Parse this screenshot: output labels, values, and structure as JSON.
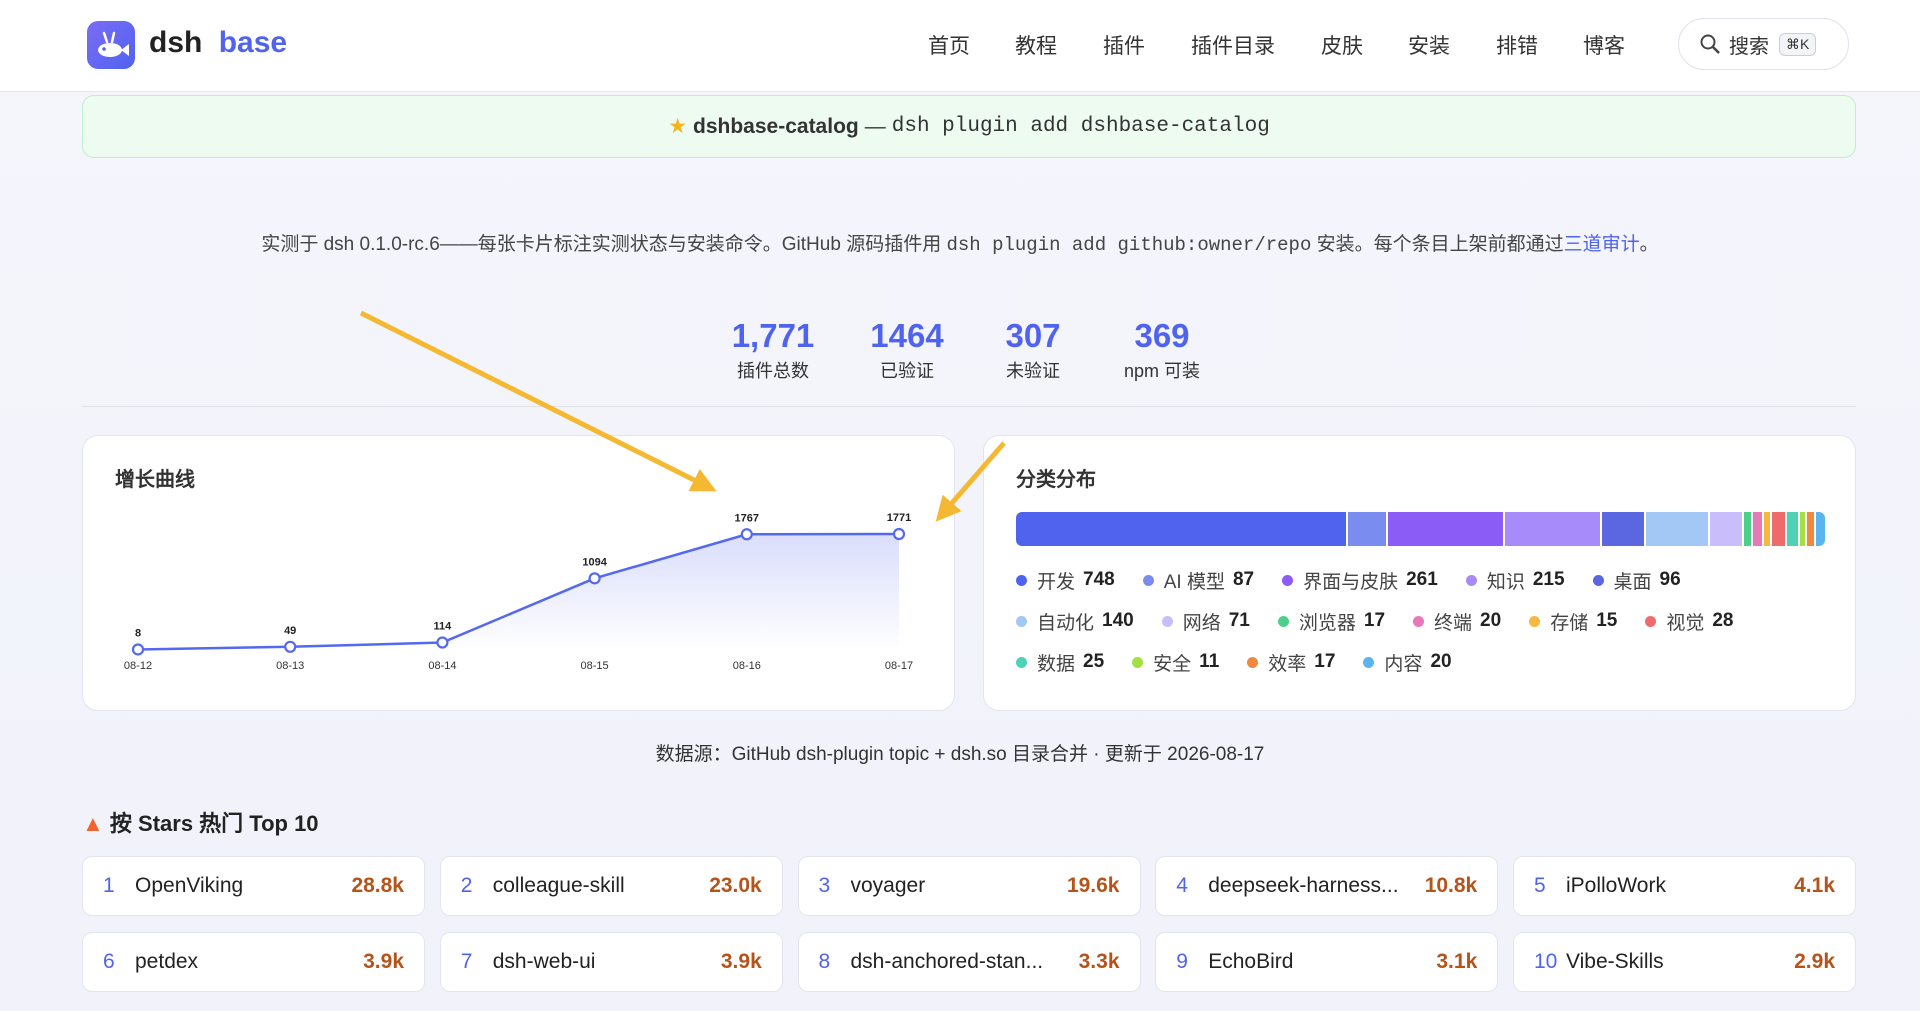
{
  "nav": {
    "brand_main": "dsh",
    "brand_accent": "base",
    "links": [
      "首页",
      "教程",
      "插件",
      "插件目录",
      "皮肤",
      "安装",
      "排错",
      "博客"
    ],
    "search": "搜索",
    "shortcut": "⌘K"
  },
  "banner": {
    "name": "dshbase-catalog",
    "separator": "—",
    "command": "dsh plugin add dshbase-catalog"
  },
  "intro": [
    "实测于 dsh 0.1.0-rc.6——每张卡片标注实测状态与安装命令。GitHub 源码插件用 ",
    "dsh plugin add github:owner/repo",
    " 安装。每个条目上架前都通过",
    "三道审计",
    "。"
  ],
  "stats": [
    {
      "value": "1,771",
      "label": "插件总数"
    },
    {
      "value": "1464",
      "label": "已验证"
    },
    {
      "value": "307",
      "label": "未验证"
    },
    {
      "value": "369",
      "label": "npm 可装"
    }
  ],
  "growth": {
    "title": "增长曲线",
    "categories": [
      "08-12",
      "08-13",
      "08-14",
      "08-15",
      "08-16",
      "08-17"
    ],
    "values": [
      8,
      49,
      114,
      1094,
      1767,
      1771
    ],
    "color": "#5468f0"
  },
  "distribution": {
    "title": "分类分布",
    "items": [
      {
        "name": "开发",
        "count": 748,
        "color": "#4f63ef"
      },
      {
        "name": "AI 模型",
        "count": 87,
        "color": "#7b8cf0"
      },
      {
        "name": "界面与皮肤",
        "count": 261,
        "color": "#8b5cf6"
      },
      {
        "name": "知识",
        "count": 215,
        "color": "#a78bfa"
      },
      {
        "name": "桌面",
        "count": 96,
        "color": "#5a67e0"
      },
      {
        "name": "自动化",
        "count": 140,
        "color": "#a3c8f5"
      },
      {
        "name": "网络",
        "count": 71,
        "color": "#c9bdfb"
      },
      {
        "name": "浏览器",
        "count": 17,
        "color": "#4ccf8a"
      },
      {
        "name": "终端",
        "count": 20,
        "color": "#e879b9"
      },
      {
        "name": "存储",
        "count": 15,
        "color": "#f5b942"
      },
      {
        "name": "视觉",
        "count": 28,
        "color": "#ef6b6b"
      },
      {
        "name": "数据",
        "count": 25,
        "color": "#4fd1b5"
      },
      {
        "name": "安全",
        "count": 11,
        "color": "#a3e048"
      },
      {
        "name": "效率",
        "count": 17,
        "color": "#f0883e"
      },
      {
        "name": "内容",
        "count": 20,
        "color": "#5ab4f0"
      }
    ]
  },
  "source": "数据源：GitHub dsh-plugin topic + dsh.so 目录合并 · 更新于 2026-08-17",
  "top": {
    "title": "按 Stars 热门 Top 10",
    "items": [
      {
        "rank": "1",
        "name": "OpenViking",
        "stars": "28.8k"
      },
      {
        "rank": "2",
        "name": "colleague-skill",
        "stars": "23.0k"
      },
      {
        "rank": "3",
        "name": "voyager",
        "stars": "19.6k"
      },
      {
        "rank": "4",
        "name": "deepseek-harness...",
        "stars": "10.8k"
      },
      {
        "rank": "5",
        "name": "iPolloWork",
        "stars": "4.1k"
      },
      {
        "rank": "6",
        "name": "petdex",
        "stars": "3.9k"
      },
      {
        "rank": "7",
        "name": "dsh-web-ui",
        "stars": "3.9k"
      },
      {
        "rank": "8",
        "name": "dsh-anchored-stan...",
        "stars": "3.3k"
      },
      {
        "rank": "9",
        "name": "EchoBird",
        "stars": "3.1k"
      },
      {
        "rank": "10",
        "name": "Vibe-Skills",
        "stars": "2.9k"
      }
    ]
  }
}
